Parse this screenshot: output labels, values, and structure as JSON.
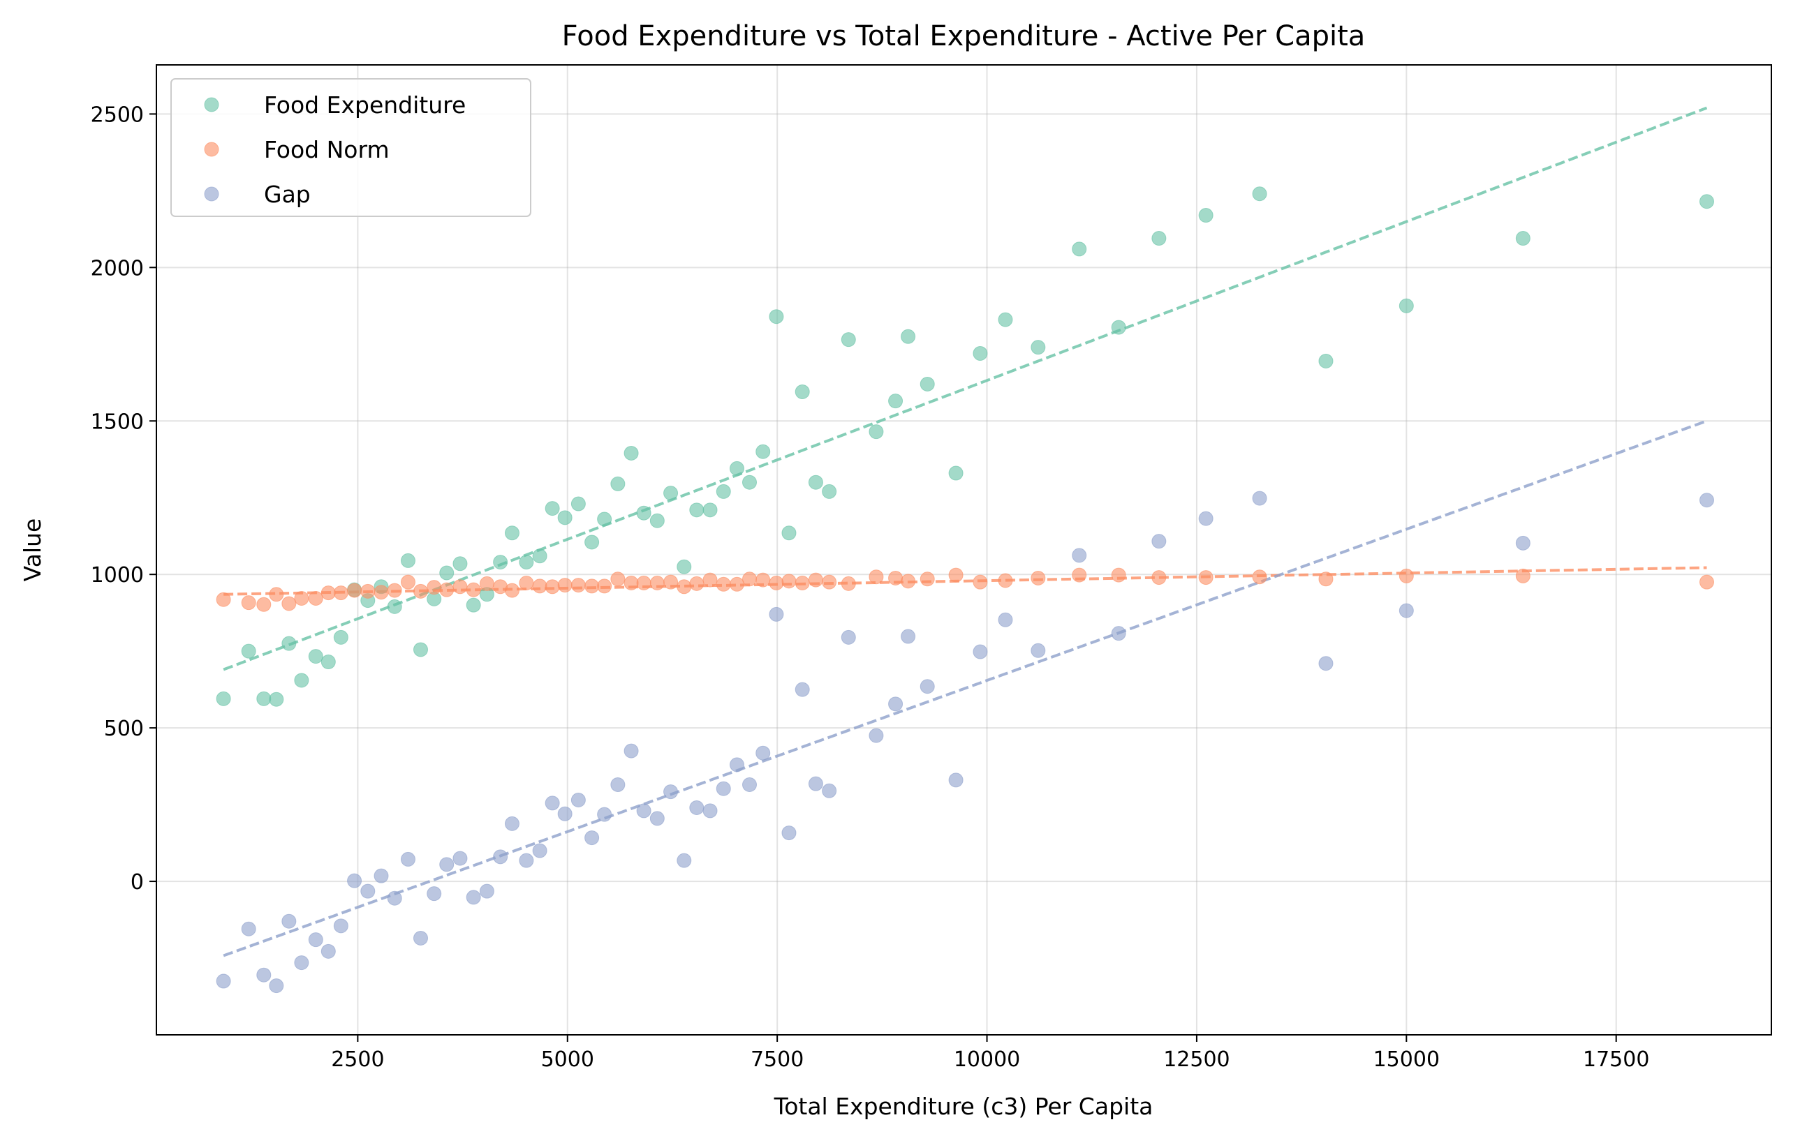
{
  "chart_data": {
    "type": "scatter",
    "title": "Food Expenditure vs Total Expenditure - Active Per Capita",
    "xlabel": "Total Expenditure (c3) Per Capita",
    "ylabel": "Value",
    "xlim": [
      100,
      19350
    ],
    "ylim": [
      -500,
      2660
    ],
    "xticks": [
      2500,
      5000,
      7500,
      10000,
      12500,
      15000,
      17500
    ],
    "yticks": [
      0,
      500,
      1000,
      1500,
      2000,
      2500
    ],
    "grid": true,
    "legend_position": "top-left",
    "series": [
      {
        "name": "Food Expenditure",
        "color": "#66c2a5",
        "points": [
          [
            900,
            595
          ],
          [
            1200,
            750
          ],
          [
            1380,
            595
          ],
          [
            1530,
            593
          ],
          [
            1680,
            775
          ],
          [
            1830,
            655
          ],
          [
            2000,
            733
          ],
          [
            2150,
            715
          ],
          [
            2300,
            795
          ],
          [
            2460,
            950
          ],
          [
            2620,
            915
          ],
          [
            2780,
            960
          ],
          [
            2940,
            895
          ],
          [
            3100,
            1045
          ],
          [
            3250,
            755
          ],
          [
            3410,
            920
          ],
          [
            3560,
            1005
          ],
          [
            3720,
            1035
          ],
          [
            3880,
            900
          ],
          [
            4040,
            935
          ],
          [
            4200,
            1040
          ],
          [
            4340,
            1135
          ],
          [
            4510,
            1040
          ],
          [
            4670,
            1060
          ],
          [
            4820,
            1215
          ],
          [
            4970,
            1185
          ],
          [
            5130,
            1230
          ],
          [
            5290,
            1105
          ],
          [
            5440,
            1180
          ],
          [
            5600,
            1295
          ],
          [
            5760,
            1395
          ],
          [
            5910,
            1200
          ],
          [
            6070,
            1175
          ],
          [
            6230,
            1265
          ],
          [
            6390,
            1025
          ],
          [
            6540,
            1210
          ],
          [
            6700,
            1210
          ],
          [
            6860,
            1270
          ],
          [
            7020,
            1345
          ],
          [
            7170,
            1300
          ],
          [
            7330,
            1400
          ],
          [
            7490,
            1840
          ],
          [
            7640,
            1135
          ],
          [
            7800,
            1595
          ],
          [
            7960,
            1300
          ],
          [
            8120,
            1270
          ],
          [
            8350,
            1765
          ],
          [
            8680,
            1465
          ],
          [
            8910,
            1565
          ],
          [
            9060,
            1775
          ],
          [
            9290,
            1620
          ],
          [
            9630,
            1330
          ],
          [
            9920,
            1720
          ],
          [
            10220,
            1830
          ],
          [
            10610,
            1740
          ],
          [
            11100,
            2060
          ],
          [
            11570,
            1805
          ],
          [
            12050,
            2095
          ],
          [
            12610,
            2170
          ],
          [
            13250,
            2240
          ],
          [
            14040,
            1695
          ],
          [
            15000,
            1875
          ],
          [
            16390,
            2095
          ],
          [
            18580,
            2215
          ]
        ],
        "trend": [
          [
            900,
            690
          ],
          [
            18580,
            2520
          ]
        ]
      },
      {
        "name": "Food Norm",
        "color": "#fc8d62",
        "points": [
          [
            900,
            918
          ],
          [
            1200,
            908
          ],
          [
            1380,
            902
          ],
          [
            1530,
            935
          ],
          [
            1680,
            905
          ],
          [
            1830,
            922
          ],
          [
            2000,
            922
          ],
          [
            2150,
            940
          ],
          [
            2300,
            940
          ],
          [
            2460,
            948
          ],
          [
            2620,
            945
          ],
          [
            2780,
            942
          ],
          [
            2940,
            948
          ],
          [
            3100,
            975
          ],
          [
            3250,
            945
          ],
          [
            3410,
            958
          ],
          [
            3560,
            950
          ],
          [
            3720,
            960
          ],
          [
            3880,
            950
          ],
          [
            4040,
            970
          ],
          [
            4200,
            960
          ],
          [
            4340,
            948
          ],
          [
            4510,
            972
          ],
          [
            4670,
            962
          ],
          [
            4820,
            960
          ],
          [
            4970,
            965
          ],
          [
            5130,
            965
          ],
          [
            5290,
            962
          ],
          [
            5440,
            962
          ],
          [
            5600,
            985
          ],
          [
            5760,
            972
          ],
          [
            5910,
            972
          ],
          [
            6070,
            972
          ],
          [
            6230,
            975
          ],
          [
            6390,
            960
          ],
          [
            6540,
            970
          ],
          [
            6700,
            982
          ],
          [
            6860,
            968
          ],
          [
            7020,
            968
          ],
          [
            7170,
            985
          ],
          [
            7330,
            982
          ],
          [
            7490,
            972
          ],
          [
            7640,
            978
          ],
          [
            7800,
            972
          ],
          [
            7960,
            982
          ],
          [
            8120,
            975
          ],
          [
            8350,
            970
          ],
          [
            8680,
            992
          ],
          [
            8910,
            988
          ],
          [
            9060,
            978
          ],
          [
            9290,
            985
          ],
          [
            9630,
            998
          ],
          [
            9920,
            975
          ],
          [
            10220,
            980
          ],
          [
            10610,
            988
          ],
          [
            11100,
            998
          ],
          [
            11570,
            998
          ],
          [
            12050,
            990
          ],
          [
            12610,
            990
          ],
          [
            13250,
            992
          ],
          [
            14040,
            985
          ],
          [
            15000,
            995
          ],
          [
            16390,
            995
          ],
          [
            18580,
            975
          ]
        ],
        "trend": [
          [
            900,
            935
          ],
          [
            18580,
            1022
          ]
        ]
      },
      {
        "name": "Gap",
        "color": "#8da0cb",
        "points": [
          [
            900,
            -325
          ],
          [
            1200,
            -155
          ],
          [
            1380,
            -305
          ],
          [
            1530,
            -340
          ],
          [
            1680,
            -130
          ],
          [
            1830,
            -265
          ],
          [
            2000,
            -190
          ],
          [
            2150,
            -228
          ],
          [
            2300,
            -145
          ],
          [
            2460,
            2
          ],
          [
            2620,
            -32
          ],
          [
            2780,
            18
          ],
          [
            2940,
            -55
          ],
          [
            3100,
            72
          ],
          [
            3250,
            -185
          ],
          [
            3410,
            -40
          ],
          [
            3560,
            55
          ],
          [
            3720,
            75
          ],
          [
            3880,
            -52
          ],
          [
            4040,
            -32
          ],
          [
            4200,
            80
          ],
          [
            4340,
            188
          ],
          [
            4510,
            68
          ],
          [
            4670,
            100
          ],
          [
            4820,
            255
          ],
          [
            4970,
            220
          ],
          [
            5130,
            265
          ],
          [
            5290,
            142
          ],
          [
            5440,
            218
          ],
          [
            5600,
            315
          ],
          [
            5760,
            425
          ],
          [
            5910,
            230
          ],
          [
            6070,
            205
          ],
          [
            6230,
            292
          ],
          [
            6390,
            68
          ],
          [
            6540,
            240
          ],
          [
            6700,
            230
          ],
          [
            6860,
            302
          ],
          [
            7020,
            380
          ],
          [
            7170,
            315
          ],
          [
            7330,
            418
          ],
          [
            7490,
            870
          ],
          [
            7640,
            158
          ],
          [
            7800,
            625
          ],
          [
            7960,
            318
          ],
          [
            8120,
            295
          ],
          [
            8350,
            795
          ],
          [
            8680,
            475
          ],
          [
            8910,
            578
          ],
          [
            9060,
            798
          ],
          [
            9290,
            635
          ],
          [
            9630,
            330
          ],
          [
            9920,
            748
          ],
          [
            10220,
            852
          ],
          [
            10610,
            752
          ],
          [
            11100,
            1062
          ],
          [
            11570,
            808
          ],
          [
            12050,
            1108
          ],
          [
            12610,
            1182
          ],
          [
            13250,
            1248
          ],
          [
            14040,
            710
          ],
          [
            15000,
            882
          ],
          [
            16390,
            1102
          ],
          [
            18580,
            1242
          ]
        ],
        "trend": [
          [
            900,
            -242
          ],
          [
            18580,
            1500
          ]
        ]
      }
    ]
  }
}
